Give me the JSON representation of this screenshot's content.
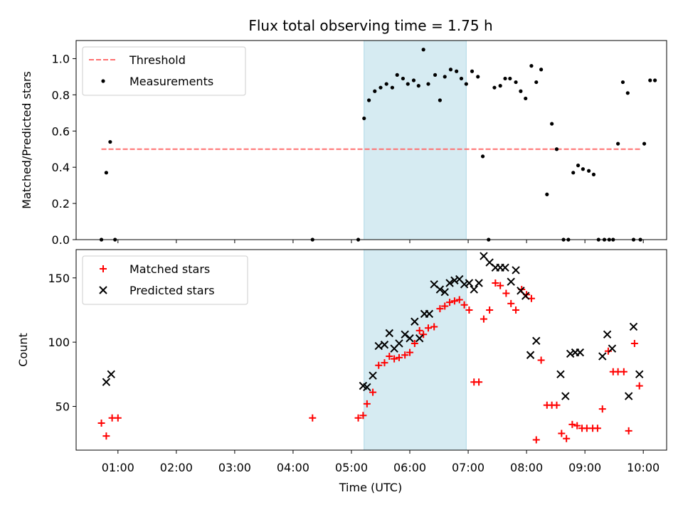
{
  "chart_data": {
    "title": "Flux total observing time = 1.75 h",
    "xlabel": "Time (UTC)",
    "x_ticks": [
      "01:00",
      "02:00",
      "03:00",
      "04:00",
      "05:00",
      "06:00",
      "07:00",
      "08:00",
      "09:00",
      "10:00"
    ],
    "x_range": [
      "00:17",
      "10:24"
    ],
    "shaded_interval": [
      "05:13",
      "06:58"
    ],
    "shade_color": "#add8e6",
    "panels": [
      {
        "type": "scatter",
        "ylabel": "Matched/Predicted stars",
        "ylim": [
          0,
          1.1
        ],
        "yticks": [
          "0.0",
          "0.2",
          "0.4",
          "0.6",
          "0.8",
          "1.0"
        ],
        "legend_position": "upper left",
        "threshold": {
          "name": "Threshold",
          "value": 0.5,
          "x_start": "00:43",
          "x_end": "09:58",
          "color": "#ff7070",
          "style": "dashed"
        },
        "series": [
          {
            "name": "Measurements",
            "color": "#000000",
            "marker": "dot",
            "points": [
              [
                "00:43",
                0.0
              ],
              [
                "00:48",
                0.37
              ],
              [
                "00:52",
                0.54
              ],
              [
                "00:57",
                0.0
              ],
              [
                "04:20",
                0.0
              ],
              [
                "05:07",
                0.0
              ],
              [
                "05:13",
                0.67
              ],
              [
                "05:18",
                0.77
              ],
              [
                "05:24",
                0.82
              ],
              [
                "05:30",
                0.84
              ],
              [
                "05:36",
                0.86
              ],
              [
                "05:42",
                0.84
              ],
              [
                "05:47",
                0.91
              ],
              [
                "05:53",
                0.89
              ],
              [
                "05:58",
                0.86
              ],
              [
                "06:04",
                0.88
              ],
              [
                "06:09",
                0.85
              ],
              [
                "06:14",
                1.05
              ],
              [
                "06:19",
                0.86
              ],
              [
                "06:26",
                0.91
              ],
              [
                "06:31",
                0.77
              ],
              [
                "06:36",
                0.9
              ],
              [
                "06:42",
                0.94
              ],
              [
                "06:48",
                0.93
              ],
              [
                "06:53",
                0.89
              ],
              [
                "06:58",
                0.86
              ],
              [
                "07:04",
                0.93
              ],
              [
                "07:10",
                0.9
              ],
              [
                "07:15",
                0.46
              ],
              [
                "07:21",
                0.0
              ],
              [
                "07:27",
                0.84
              ],
              [
                "07:33",
                0.85
              ],
              [
                "07:38",
                0.89
              ],
              [
                "07:43",
                0.89
              ],
              [
                "07:49",
                0.87
              ],
              [
                "07:54",
                0.82
              ],
              [
                "07:59",
                0.78
              ],
              [
                "08:05",
                0.96
              ],
              [
                "08:10",
                0.87
              ],
              [
                "08:15",
                0.94
              ],
              [
                "08:21",
                0.25
              ],
              [
                "08:26",
                0.64
              ],
              [
                "08:31",
                0.5
              ],
              [
                "08:38",
                0.0
              ],
              [
                "08:43",
                0.0
              ],
              [
                "08:48",
                0.37
              ],
              [
                "08:53",
                0.41
              ],
              [
                "08:58",
                0.39
              ],
              [
                "09:04",
                0.38
              ],
              [
                "09:09",
                0.36
              ],
              [
                "09:14",
                0.0
              ],
              [
                "09:20",
                0.0
              ],
              [
                "09:25",
                0.0
              ],
              [
                "09:29",
                0.0
              ],
              [
                "09:34",
                0.53
              ],
              [
                "09:39",
                0.87
              ],
              [
                "09:44",
                0.81
              ],
              [
                "09:50",
                0.0
              ],
              [
                "09:57",
                0.0
              ],
              [
                "10:01",
                0.53
              ],
              [
                "10:07",
                0.88
              ],
              [
                "10:12",
                0.88
              ]
            ]
          }
        ]
      },
      {
        "type": "scatter",
        "ylabel": "Count",
        "ylim": [
          16,
          172
        ],
        "yticks": [
          "50",
          "100",
          "150"
        ],
        "legend_position": "upper left",
        "series": [
          {
            "name": "Matched stars",
            "color": "#ff0000",
            "marker": "plus",
            "points": [
              [
                "00:43",
                37
              ],
              [
                "00:48",
                27
              ],
              [
                "00:54",
                41
              ],
              [
                "01:00",
                41
              ],
              [
                "04:20",
                41
              ],
              [
                "05:07",
                41
              ],
              [
                "05:12",
                43
              ],
              [
                "05:16",
                52
              ],
              [
                "05:22",
                61
              ],
              [
                "05:28",
                82
              ],
              [
                "05:34",
                84
              ],
              [
                "05:39",
                89
              ],
              [
                "05:44",
                87
              ],
              [
                "05:49",
                88
              ],
              [
                "05:55",
                90
              ],
              [
                "06:00",
                92
              ],
              [
                "06:05",
                99
              ],
              [
                "06:10",
                109
              ],
              [
                "06:14",
                106
              ],
              [
                "06:19",
                111
              ],
              [
                "06:25",
                112
              ],
              [
                "06:31",
                126
              ],
              [
                "06:36",
                128
              ],
              [
                "06:41",
                131
              ],
              [
                "06:46",
                132
              ],
              [
                "06:51",
                133
              ],
              [
                "06:56",
                129
              ],
              [
                "07:01",
                125
              ],
              [
                "07:06",
                69
              ],
              [
                "07:11",
                69
              ],
              [
                "07:16",
                118
              ],
              [
                "07:22",
                125
              ],
              [
                "07:28",
                146
              ],
              [
                "07:33",
                144
              ],
              [
                "07:39",
                138
              ],
              [
                "07:44",
                130
              ],
              [
                "07:49",
                125
              ],
              [
                "07:55",
                141
              ],
              [
                "08:00",
                137
              ],
              [
                "08:05",
                134
              ],
              [
                "08:10",
                24
              ],
              [
                "08:15",
                86
              ],
              [
                "08:21",
                51
              ],
              [
                "08:26",
                51
              ],
              [
                "08:31",
                51
              ],
              [
                "08:36",
                29
              ],
              [
                "08:41",
                25
              ],
              [
                "08:47",
                36
              ],
              [
                "08:52",
                35
              ],
              [
                "08:57",
                33
              ],
              [
                "09:02",
                33
              ],
              [
                "09:08",
                33
              ],
              [
                "09:13",
                33
              ],
              [
                "09:18",
                48
              ],
              [
                "09:24",
                93
              ],
              [
                "09:29",
                77
              ],
              [
                "09:34",
                77
              ],
              [
                "09:40",
                77
              ],
              [
                "09:45",
                31
              ],
              [
                "09:51",
                99
              ],
              [
                "09:56",
                66
              ]
            ]
          },
          {
            "name": "Predicted stars",
            "color": "#000000",
            "marker": "x",
            "points": [
              [
                "00:48",
                69
              ],
              [
                "00:53",
                75
              ],
              [
                "05:12",
                66
              ],
              [
                "05:16",
                65
              ],
              [
                "05:22",
                74
              ],
              [
                "05:28",
                97
              ],
              [
                "05:34",
                98
              ],
              [
                "05:39",
                107
              ],
              [
                "05:44",
                95
              ],
              [
                "05:49",
                99
              ],
              [
                "05:55",
                106
              ],
              [
                "06:00",
                103
              ],
              [
                "06:05",
                116
              ],
              [
                "06:10",
                103
              ],
              [
                "06:15",
                122
              ],
              [
                "06:20",
                122
              ],
              [
                "06:25",
                145
              ],
              [
                "06:31",
                141
              ],
              [
                "06:36",
                139
              ],
              [
                "06:41",
                146
              ],
              [
                "06:46",
                148
              ],
              [
                "06:51",
                149
              ],
              [
                "06:56",
                145
              ],
              [
                "07:01",
                146
              ],
              [
                "07:06",
                141
              ],
              [
                "07:11",
                146
              ],
              [
                "07:16",
                167
              ],
              [
                "07:22",
                162
              ],
              [
                "07:28",
                158
              ],
              [
                "07:33",
                158
              ],
              [
                "07:38",
                158
              ],
              [
                "07:44",
                147
              ],
              [
                "07:49",
                156
              ],
              [
                "07:54",
                140
              ],
              [
                "07:59",
                136
              ],
              [
                "08:04",
                90
              ],
              [
                "08:10",
                101
              ],
              [
                "08:35",
                75
              ],
              [
                "08:40",
                58
              ],
              [
                "08:45",
                91
              ],
              [
                "08:50",
                92
              ],
              [
                "08:55",
                92
              ],
              [
                "09:18",
                89
              ],
              [
                "09:23",
                106
              ],
              [
                "09:28",
                95
              ],
              [
                "09:45",
                58
              ],
              [
                "09:50",
                112
              ],
              [
                "09:56",
                75
              ]
            ]
          }
        ]
      }
    ]
  }
}
